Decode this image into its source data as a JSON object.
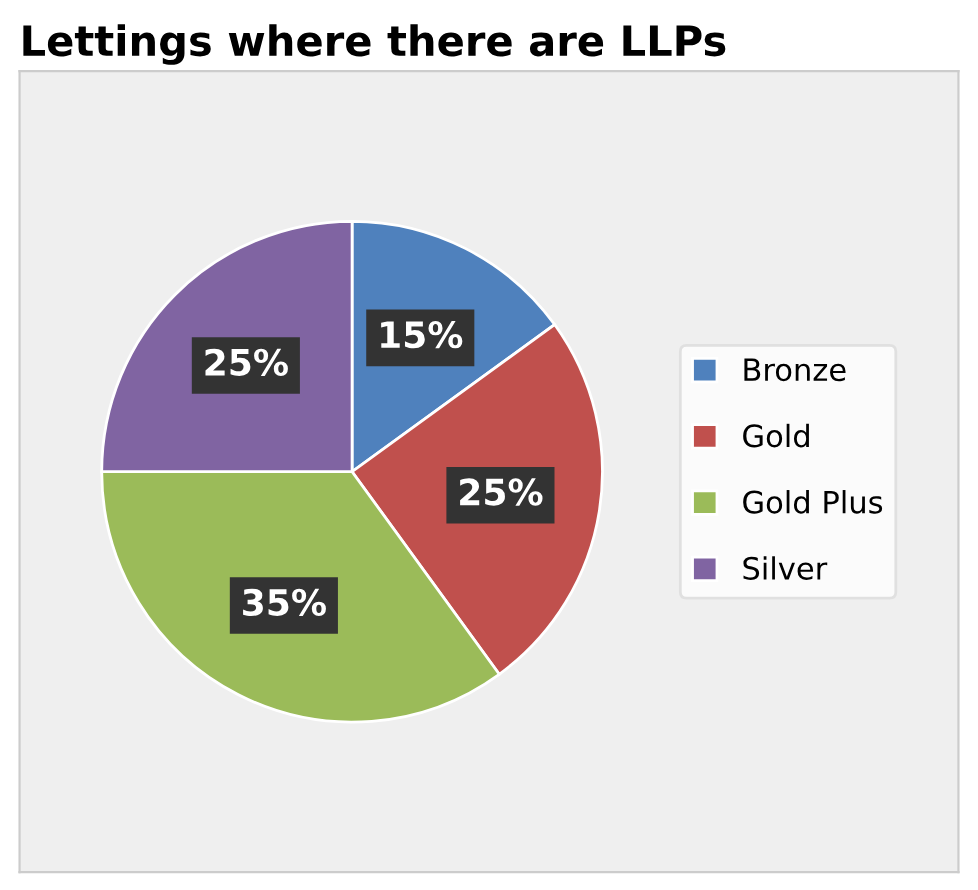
{
  "chart_data": {
    "type": "pie",
    "title": "Lettings where there are LLPs",
    "categories": [
      "Bronze",
      "Gold",
      "Gold Plus",
      "Silver"
    ],
    "values": [
      15,
      25,
      35,
      25
    ],
    "colors": [
      "#4f81bd",
      "#c0504d",
      "#9bbb59",
      "#8064a2"
    ],
    "value_labels": [
      "15%",
      "25%",
      "35%",
      "25%"
    ],
    "legend": "right"
  }
}
